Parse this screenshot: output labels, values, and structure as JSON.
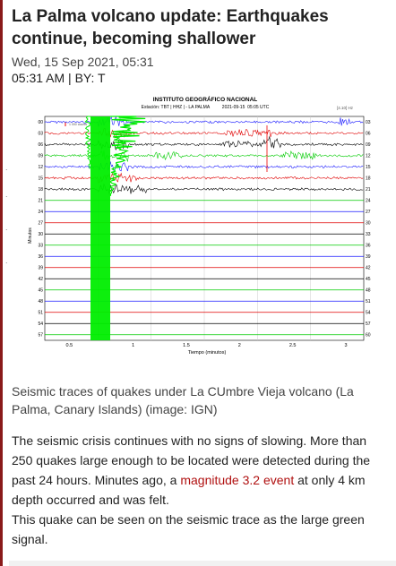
{
  "article": {
    "title": "La Palma volcano update: Earthquakes continue, becoming shallower",
    "date": "Wed, 15 Sep 2021, 05:31",
    "byline": "05:31 AM | BY: T",
    "caption": "Seismic traces of quakes under La CUmbre Vieja volcano (La Palma, Canary Islands) (image: IGN)",
    "body_part1": "The seismic crisis continues with no signs of slowing. More than 250 quakes large enough to be located were detected during the past 24 hours. Minutes ago, a ",
    "link_text": "magnitude 3.2 event",
    "body_part2": " at only 4 km depth occurred and was felt.",
    "body_part3": "This quake can be seen on the seismic trace as the large green signal."
  },
  "seismogram": {
    "header": "INSTITUTO GEOGRÁFICO NACIONAL",
    "subheader": "Estación: TBT | HHZ | - LA PALMA          2021-09-15  05:05 UTC",
    "scale_box": "[4.10] Hz",
    "scale_label": "1  000 counts",
    "y_axis_label": "Minutos",
    "x_axis_label": "Tiempo (minutos)",
    "left_ticks": [
      "00",
      "03",
      "06",
      "09",
      "12",
      "15",
      "18",
      "21",
      "24",
      "27",
      "30",
      "33",
      "36",
      "39",
      "42",
      "45",
      "48",
      "51",
      "54",
      "57"
    ],
    "right_ticks": [
      "03",
      "06",
      "09",
      "12",
      "15",
      "18",
      "21",
      "24",
      "27",
      "30",
      "33",
      "36",
      "39",
      "42",
      "45",
      "48",
      "51",
      "54",
      "57",
      "60"
    ],
    "x_ticks": [
      "0.5",
      "1",
      "1.5",
      "2",
      "2.5",
      "3"
    ],
    "trace_colors": [
      "#1a1aff",
      "#e00000",
      "#000000",
      "#00cc00"
    ],
    "highlight_color": "#00ee00"
  }
}
